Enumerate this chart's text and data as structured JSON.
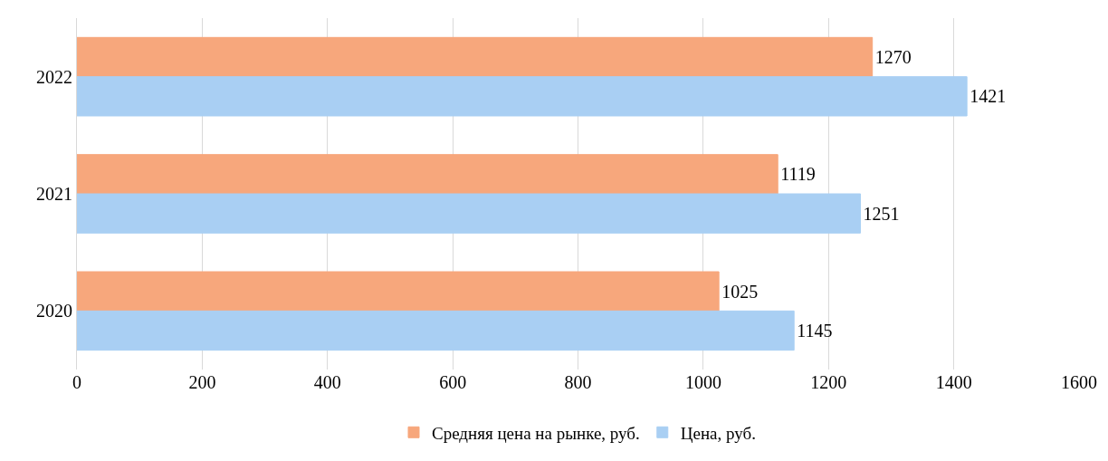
{
  "chart_data": {
    "type": "bar",
    "orientation": "horizontal",
    "categories": [
      "2022",
      "2021",
      "2020"
    ],
    "series": [
      {
        "name": "Средняя цена на рынке, руб.",
        "color": "#f7a77c",
        "values": [
          1270,
          1119,
          1025
        ]
      },
      {
        "name": "Цена, руб.",
        "color": "#a9cff3",
        "values": [
          1421,
          1251,
          1145
        ]
      }
    ],
    "xlim": [
      0,
      1600
    ],
    "xticks": [
      0,
      200,
      400,
      600,
      800,
      1000,
      1200,
      1400,
      1600
    ],
    "grid": "x",
    "legend": "bottom",
    "data_labels": true
  }
}
